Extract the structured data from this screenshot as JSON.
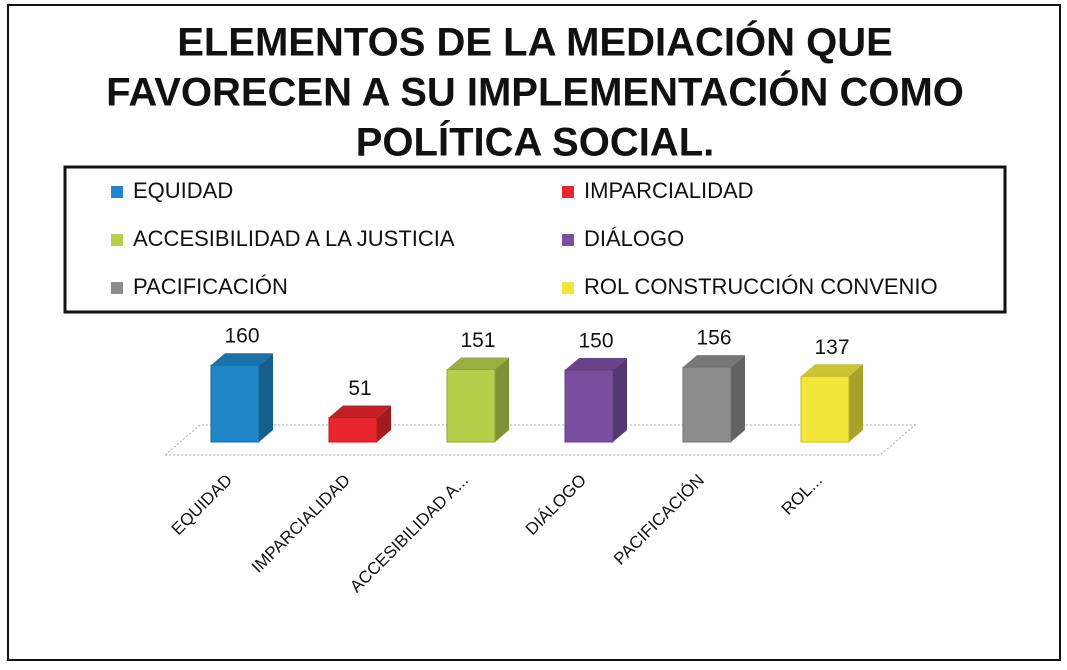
{
  "chart_data": {
    "type": "bar3d",
    "title": [
      "ELEMENTOS DE LA MEDIACIÓN QUE",
      "FAVORECEN A SU IMPLEMENTACIÓN COMO",
      "POLÍTICA SOCIAL."
    ],
    "categories": [
      "EQUIDAD",
      "IMPARCIALIDAD",
      "ACCESIBILIDAD A...",
      "DIÁLOGO",
      "PACIFICACIÓN",
      "ROL..."
    ],
    "legend": [
      "EQUIDAD",
      "IMPARCIALIDAD",
      "ACCESIBILIDAD A LA JUSTICIA",
      "DIÁLOGO",
      "PACIFICACIÓN",
      "ROL CONSTRUCCIÓN CONVENIO"
    ],
    "colors": [
      "#1f86c8",
      "#e8262d",
      "#b4cf4a",
      "#7a4fa0",
      "#8c8c8c",
      "#f2e63a"
    ],
    "values": [
      160,
      51,
      151,
      150,
      156,
      137
    ]
  }
}
